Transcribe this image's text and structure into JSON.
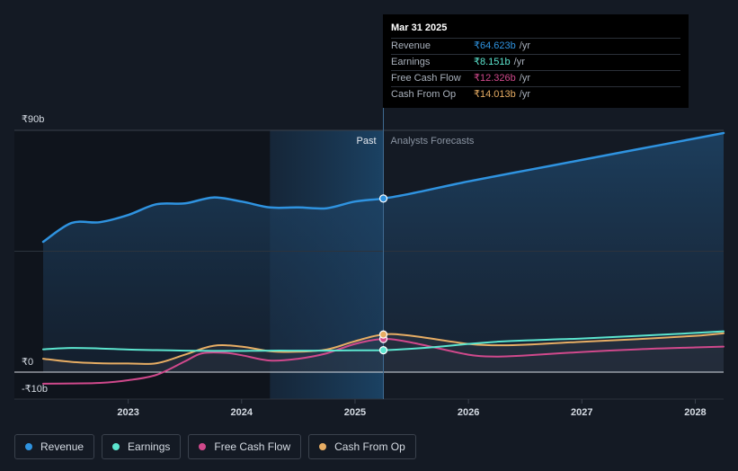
{
  "chart_data": {
    "type": "line",
    "currency": "₹",
    "y_axis": {
      "ylim": [
        -10,
        90
      ],
      "ticks": [
        {
          "value": 90,
          "label": "₹90b"
        },
        {
          "value": 0,
          "label": "₹0"
        },
        {
          "value": -10,
          "label": "-₹10b"
        }
      ]
    },
    "x_axis": {
      "xlim": [
        2022.25,
        2028.25
      ],
      "ticks": [
        {
          "value": 2023,
          "label": "2023"
        },
        {
          "value": 2024,
          "label": "2024"
        },
        {
          "value": 2025,
          "label": "2025"
        },
        {
          "value": 2026,
          "label": "2026"
        },
        {
          "value": 2027,
          "label": "2027"
        },
        {
          "value": 2028,
          "label": "2028"
        }
      ]
    },
    "divider_x": 2025.25,
    "highlight_start_x": 2024.25,
    "past_label": "Past",
    "forecast_label": "Analysts Forecasts",
    "series": [
      {
        "name": "Revenue",
        "color": "#2f93e0",
        "points": [
          [
            2022.25,
            48.5
          ],
          [
            2022.5,
            55.5
          ],
          [
            2022.75,
            55.8
          ],
          [
            2023.0,
            58.5
          ],
          [
            2023.25,
            62.5
          ],
          [
            2023.5,
            62.8
          ],
          [
            2023.75,
            65
          ],
          [
            2024.0,
            63.5
          ],
          [
            2024.25,
            61.3
          ],
          [
            2024.5,
            61.3
          ],
          [
            2024.75,
            61
          ],
          [
            2025.0,
            63.5
          ],
          [
            2025.25,
            64.623
          ],
          [
            2025.5,
            66.5
          ],
          [
            2026.0,
            71
          ],
          [
            2026.5,
            75
          ],
          [
            2027.0,
            79
          ],
          [
            2027.5,
            83
          ],
          [
            2028.0,
            87
          ],
          [
            2028.25,
            89
          ]
        ],
        "markers": [
          {
            "x": 2025.25,
            "y": 64.623
          }
        ]
      },
      {
        "name": "Earnings",
        "color": "#5ce5cf",
        "points": [
          [
            2022.25,
            8.5
          ],
          [
            2022.5,
            9.0
          ],
          [
            2022.75,
            8.8
          ],
          [
            2023.0,
            8.4
          ],
          [
            2023.25,
            8.2
          ],
          [
            2023.5,
            8.0
          ],
          [
            2023.75,
            7.9
          ],
          [
            2024.0,
            7.9
          ],
          [
            2024.25,
            8.0
          ],
          [
            2024.5,
            8.0
          ],
          [
            2024.75,
            8.0
          ],
          [
            2025.0,
            8.1
          ],
          [
            2025.25,
            8.151
          ],
          [
            2025.5,
            8.7
          ],
          [
            2025.75,
            9.5
          ],
          [
            2026.0,
            10.5
          ],
          [
            2026.25,
            11.3
          ],
          [
            2026.5,
            11.8
          ],
          [
            2027.0,
            12.5
          ],
          [
            2027.5,
            13.5
          ],
          [
            2028.0,
            14.6
          ],
          [
            2028.25,
            15.2
          ]
        ],
        "markers": [
          {
            "x": 2025.25,
            "y": 8.151
          }
        ]
      },
      {
        "name": "Free Cash Flow",
        "color": "#d0498c",
        "points": [
          [
            2022.25,
            -4.3
          ],
          [
            2022.5,
            -4.2
          ],
          [
            2022.75,
            -4.0
          ],
          [
            2023.0,
            -3.0
          ],
          [
            2023.25,
            -1
          ],
          [
            2023.5,
            4
          ],
          [
            2023.65,
            7
          ],
          [
            2023.85,
            7.2
          ],
          [
            2024.0,
            6.3
          ],
          [
            2024.25,
            4.3
          ],
          [
            2024.5,
            5
          ],
          [
            2024.75,
            7
          ],
          [
            2025.0,
            10.5
          ],
          [
            2025.25,
            12.326
          ],
          [
            2025.5,
            11
          ],
          [
            2026.0,
            6.5
          ],
          [
            2026.25,
            5.8
          ],
          [
            2026.5,
            6.2
          ],
          [
            2027.0,
            7.5
          ],
          [
            2027.5,
            8.5
          ],
          [
            2028.0,
            9.2
          ],
          [
            2028.25,
            9.5
          ]
        ],
        "markers": [
          {
            "x": 2025.25,
            "y": 12.326
          }
        ]
      },
      {
        "name": "Cash From Op",
        "color": "#e7ad64",
        "points": [
          [
            2022.25,
            5.0
          ],
          [
            2022.5,
            3.8
          ],
          [
            2022.75,
            3.3
          ],
          [
            2023.0,
            3.2
          ],
          [
            2023.25,
            3.3
          ],
          [
            2023.5,
            6.5
          ],
          [
            2023.75,
            9.8
          ],
          [
            2024.0,
            9.5
          ],
          [
            2024.25,
            7.8
          ],
          [
            2024.5,
            7.6
          ],
          [
            2024.75,
            8.4
          ],
          [
            2025.0,
            11.5
          ],
          [
            2025.25,
            14.013
          ],
          [
            2025.5,
            13.5
          ],
          [
            2026.0,
            10.5
          ],
          [
            2026.25,
            10
          ],
          [
            2026.5,
            10.2
          ],
          [
            2027.0,
            11.3
          ],
          [
            2027.5,
            12.3
          ],
          [
            2028.0,
            13.5
          ],
          [
            2028.25,
            14.5
          ]
        ],
        "markers": [
          {
            "x": 2025.25,
            "y": 14.013
          }
        ]
      }
    ]
  },
  "tooltip": {
    "date": "Mar 31 2025",
    "rows": [
      {
        "label": "Revenue",
        "value": "₹64.623b",
        "unit": "/yr",
        "color": "#2f93e0"
      },
      {
        "label": "Earnings",
        "value": "₹8.151b",
        "unit": "/yr",
        "color": "#5ce5cf"
      },
      {
        "label": "Free Cash Flow",
        "value": "₹12.326b",
        "unit": "/yr",
        "color": "#d0498c"
      },
      {
        "label": "Cash From Op",
        "value": "₹14.013b",
        "unit": "/yr",
        "color": "#e7ad64"
      }
    ]
  },
  "legend": [
    {
      "label": "Revenue",
      "color": "#2f93e0"
    },
    {
      "label": "Earnings",
      "color": "#5ce5cf"
    },
    {
      "label": "Free Cash Flow",
      "color": "#d0498c"
    },
    {
      "label": "Cash From Op",
      "color": "#e7ad64"
    }
  ]
}
